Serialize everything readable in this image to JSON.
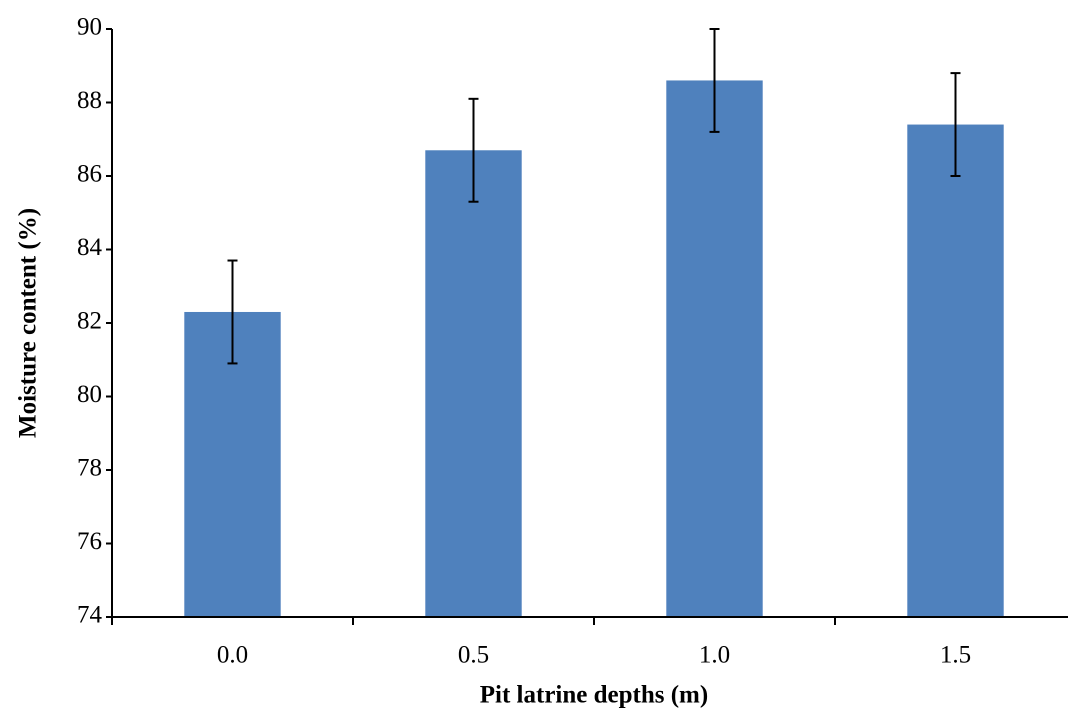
{
  "chart_data": {
    "type": "bar",
    "x_label": "Pit latrine depths (m)",
    "y_label": "Moisture content (%)",
    "categories": [
      "0.0",
      "0.5",
      "1.0",
      "1.5"
    ],
    "values": [
      82.3,
      86.7,
      88.6,
      87.4
    ],
    "errors": [
      1.4,
      1.4,
      1.4,
      1.4
    ],
    "color": "#4f81bd",
    "ylim": [
      74,
      90
    ],
    "yticks": [
      74,
      76,
      78,
      80,
      82,
      84,
      86,
      88,
      90
    ],
    "grid": false
  }
}
